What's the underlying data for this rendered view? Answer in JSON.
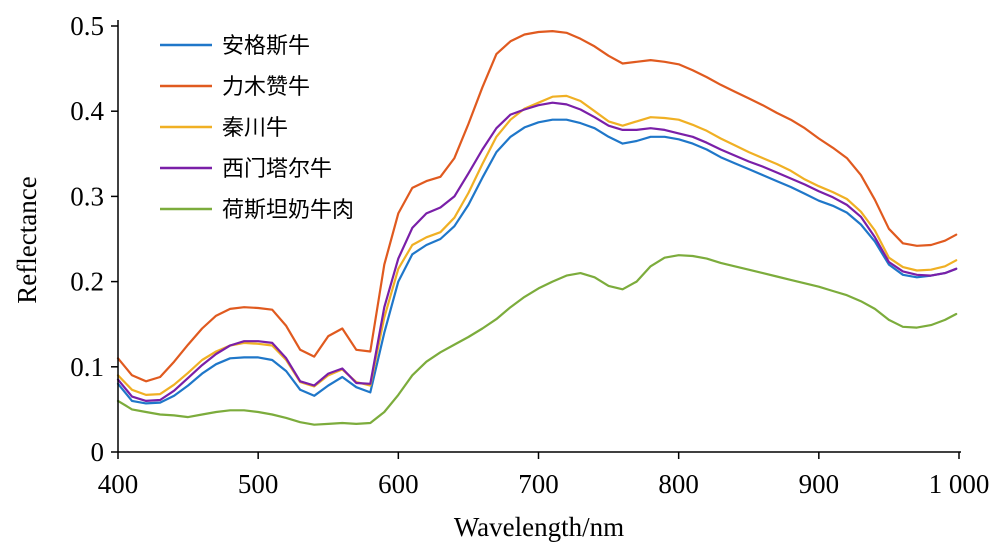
{
  "chart_data": {
    "type": "line",
    "xlabel": "Wavelength/nm",
    "ylabel": "Reflectance",
    "xlim": [
      400,
      1000
    ],
    "ylim": [
      0,
      0.5
    ],
    "x_ticks": [
      400,
      500,
      600,
      700,
      800,
      900,
      1000
    ],
    "x_tick_labels": [
      "400",
      "500",
      "600",
      "700",
      "800",
      "900",
      "1 000"
    ],
    "y_ticks": [
      0,
      0.1,
      0.2,
      0.3,
      0.4,
      0.5
    ],
    "y_tick_labels": [
      "0",
      "0.1",
      "0.2",
      "0.3",
      "0.4",
      "0.5"
    ],
    "grid": false,
    "legend_position": "top-left",
    "x": [
      400,
      410,
      420,
      430,
      440,
      450,
      460,
      470,
      480,
      490,
      500,
      510,
      520,
      530,
      540,
      550,
      560,
      570,
      580,
      590,
      600,
      610,
      620,
      630,
      640,
      650,
      660,
      670,
      680,
      690,
      700,
      710,
      720,
      730,
      740,
      750,
      760,
      770,
      780,
      790,
      800,
      810,
      820,
      830,
      840,
      850,
      860,
      870,
      880,
      890,
      900,
      910,
      920,
      930,
      940,
      950,
      960,
      970,
      980,
      990,
      998
    ],
    "series": [
      {
        "name": "安格斯牛",
        "color": "#1f77c9",
        "values": [
          0.08,
          0.06,
          0.057,
          0.058,
          0.066,
          0.078,
          0.092,
          0.103,
          0.11,
          0.111,
          0.111,
          0.108,
          0.095,
          0.073,
          0.066,
          0.078,
          0.088,
          0.076,
          0.07,
          0.14,
          0.2,
          0.232,
          0.243,
          0.25,
          0.265,
          0.29,
          0.322,
          0.352,
          0.37,
          0.381,
          0.387,
          0.39,
          0.39,
          0.386,
          0.38,
          0.37,
          0.362,
          0.365,
          0.37,
          0.37,
          0.367,
          0.362,
          0.355,
          0.346,
          0.339,
          0.332,
          0.325,
          0.318,
          0.311,
          0.303,
          0.295,
          0.289,
          0.281,
          0.267,
          0.247,
          0.22,
          0.208,
          0.205,
          0.207,
          0.21,
          0.215
        ]
      },
      {
        "name": "力木赞牛",
        "color": "#e05a1f",
        "values": [
          0.11,
          0.09,
          0.083,
          0.088,
          0.106,
          0.126,
          0.145,
          0.16,
          0.168,
          0.17,
          0.169,
          0.167,
          0.148,
          0.12,
          0.112,
          0.136,
          0.145,
          0.12,
          0.118,
          0.22,
          0.28,
          0.31,
          0.318,
          0.323,
          0.345,
          0.385,
          0.428,
          0.467,
          0.482,
          0.49,
          0.493,
          0.494,
          0.492,
          0.485,
          0.476,
          0.465,
          0.456,
          0.458,
          0.46,
          0.458,
          0.455,
          0.448,
          0.44,
          0.431,
          0.423,
          0.415,
          0.407,
          0.398,
          0.39,
          0.38,
          0.368,
          0.357,
          0.345,
          0.325,
          0.296,
          0.262,
          0.245,
          0.242,
          0.243,
          0.248,
          0.255
        ]
      },
      {
        "name": "秦川牛",
        "color": "#f0b024",
        "values": [
          0.09,
          0.073,
          0.067,
          0.068,
          0.079,
          0.093,
          0.108,
          0.118,
          0.125,
          0.128,
          0.127,
          0.125,
          0.108,
          0.082,
          0.077,
          0.09,
          0.097,
          0.082,
          0.078,
          0.158,
          0.215,
          0.243,
          0.252,
          0.258,
          0.275,
          0.304,
          0.338,
          0.37,
          0.39,
          0.403,
          0.41,
          0.417,
          0.418,
          0.412,
          0.4,
          0.388,
          0.383,
          0.388,
          0.393,
          0.392,
          0.39,
          0.384,
          0.377,
          0.368,
          0.36,
          0.352,
          0.345,
          0.338,
          0.33,
          0.32,
          0.312,
          0.305,
          0.297,
          0.282,
          0.26,
          0.228,
          0.217,
          0.213,
          0.214,
          0.218,
          0.225
        ]
      },
      {
        "name": "西门塔尔牛",
        "color": "#7a1fa8",
        "values": [
          0.085,
          0.065,
          0.06,
          0.061,
          0.072,
          0.087,
          0.102,
          0.115,
          0.125,
          0.13,
          0.13,
          0.128,
          0.11,
          0.083,
          0.078,
          0.092,
          0.098,
          0.081,
          0.08,
          0.17,
          0.227,
          0.263,
          0.28,
          0.287,
          0.3,
          0.327,
          0.355,
          0.38,
          0.396,
          0.402,
          0.407,
          0.41,
          0.408,
          0.402,
          0.393,
          0.383,
          0.378,
          0.378,
          0.38,
          0.378,
          0.374,
          0.37,
          0.363,
          0.355,
          0.348,
          0.341,
          0.335,
          0.328,
          0.321,
          0.314,
          0.306,
          0.299,
          0.29,
          0.276,
          0.252,
          0.223,
          0.212,
          0.208,
          0.207,
          0.21,
          0.215
        ]
      },
      {
        "name": "荷斯坦奶牛肉",
        "color": "#7cac3c",
        "values": [
          0.06,
          0.05,
          0.047,
          0.044,
          0.043,
          0.041,
          0.044,
          0.047,
          0.049,
          0.049,
          0.047,
          0.044,
          0.04,
          0.035,
          0.032,
          0.033,
          0.034,
          0.033,
          0.034,
          0.047,
          0.067,
          0.09,
          0.106,
          0.117,
          0.126,
          0.135,
          0.145,
          0.156,
          0.17,
          0.182,
          0.192,
          0.2,
          0.207,
          0.21,
          0.205,
          0.195,
          0.191,
          0.2,
          0.218,
          0.228,
          0.231,
          0.23,
          0.227,
          0.222,
          0.218,
          0.214,
          0.21,
          0.206,
          0.202,
          0.198,
          0.194,
          0.189,
          0.184,
          0.177,
          0.168,
          0.155,
          0.147,
          0.146,
          0.149,
          0.155,
          0.162
        ]
      }
    ]
  }
}
